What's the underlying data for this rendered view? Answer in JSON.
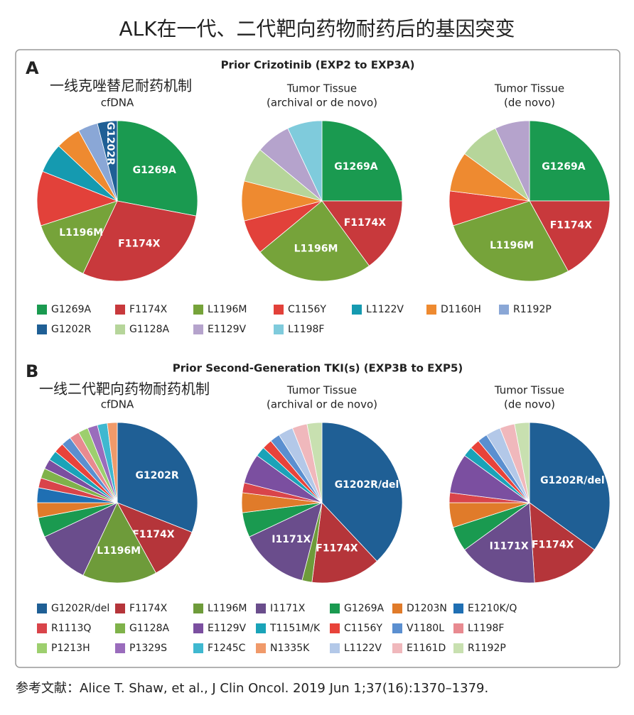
{
  "title": "ALK在一代、二代靶向药物耐药后的基因突变",
  "footer": "参考文献：Alice T. Shaw, et al., J Clin Oncol. 2019 Jun 1;37(16):1370–1379.",
  "panels": [
    {
      "label": "A",
      "title": "Prior Crizotinib (EXP2 to EXP3A)",
      "note": "一线克唑替尼耐药机制",
      "legend": [
        {
          "name": "G1269A",
          "color": "#1a9a50"
        },
        {
          "name": "F1174X",
          "color": "#c8393c"
        },
        {
          "name": "L1196M",
          "color": "#76a33a"
        },
        {
          "name": "C1156Y",
          "color": "#e2413a"
        },
        {
          "name": "L1122V",
          "color": "#159ab0"
        },
        {
          "name": "D1160H",
          "color": "#ee8a30"
        },
        {
          "name": "R1192P",
          "color": "#8aa7d6"
        },
        {
          "name": "G1202R",
          "color": "#1f5f95"
        },
        {
          "name": "G1128A",
          "color": "#b6d59a"
        },
        {
          "name": "E1129V",
          "color": "#b5a3cc"
        },
        {
          "name": "L1198F",
          "color": "#7fcbdc"
        }
      ]
    },
    {
      "label": "B",
      "title": "Prior Second-Generation TKI(s) (EXP3B to EXP5)",
      "note": "一线二代靶向药物耐药机制",
      "legend": [
        {
          "name": "G1202R/del",
          "color": "#1f5f95"
        },
        {
          "name": "F1174X",
          "color": "#b5353a"
        },
        {
          "name": "L1196M",
          "color": "#6e9b3a"
        },
        {
          "name": "I1171X",
          "color": "#6a4d8c"
        },
        {
          "name": "G1269A",
          "color": "#1a9a50"
        },
        {
          "name": "D1203N",
          "color": "#e07b2a"
        },
        {
          "name": "E1210K/Q",
          "color": "#1f6fb3"
        },
        {
          "name": "R1113Q",
          "color": "#d9444a"
        },
        {
          "name": "G1128A",
          "color": "#7fb24a"
        },
        {
          "name": "E1129V",
          "color": "#7b4fa0"
        },
        {
          "name": "T1151M/K",
          "color": "#1aa3b8"
        },
        {
          "name": "C1156Y",
          "color": "#e8433a"
        },
        {
          "name": "V1180L",
          "color": "#5b8fd0"
        },
        {
          "name": "L1198F",
          "color": "#e88a90"
        },
        {
          "name": "P1213H",
          "color": "#9dcf6e"
        },
        {
          "name": "P1329S",
          "color": "#9a6cbc"
        },
        {
          "name": "F1245C",
          "color": "#3fb8d0"
        },
        {
          "name": "N1335K",
          "color": "#f09a6a"
        },
        {
          "name": "L1122V",
          "color": "#b3c8e8"
        },
        {
          "name": "E1161D",
          "color": "#f0b8bc"
        },
        {
          "name": "R1192P",
          "color": "#c8e0b0"
        }
      ]
    }
  ],
  "chart_data": [
    {
      "type": "pie",
      "title": "cfDNA",
      "categories": [
        "G1269A",
        "F1174X",
        "L1196M",
        null,
        null,
        null,
        null,
        "G1202R"
      ],
      "values": [
        28,
        29,
        13,
        11,
        6,
        5,
        4,
        4
      ],
      "colors": [
        "#1a9a50",
        "#c8393c",
        "#76a33a",
        "#e2413a",
        "#159ab0",
        "#ee8a30",
        "#8aa7d6",
        "#1f5f95"
      ]
    },
    {
      "type": "pie",
      "title": "Tumor Tissue",
      "subtitle": "(archival or de novo)",
      "categories": [
        "G1269A",
        "F1174X",
        "L1196M",
        null,
        null,
        null,
        null,
        null
      ],
      "values": [
        25,
        15,
        24,
        7,
        8,
        7,
        7,
        7
      ],
      "colors": [
        "#1a9a50",
        "#c8393c",
        "#76a33a",
        "#e2413a",
        "#ee8a30",
        "#b6d59a",
        "#b5a3cc",
        "#7fcbdc"
      ]
    },
    {
      "type": "pie",
      "title": "Tumor Tissue",
      "subtitle": "(de novo)",
      "categories": [
        "G1269A",
        "F1174X",
        "L1196M",
        null,
        null,
        null,
        null
      ],
      "values": [
        25,
        17,
        28,
        7,
        8,
        8,
        7
      ],
      "colors": [
        "#1a9a50",
        "#c8393c",
        "#76a33a",
        "#e2413a",
        "#ee8a30",
        "#b6d59a",
        "#b5a3cc"
      ]
    },
    {
      "type": "pie",
      "title": "cfDNA",
      "categories": [
        "G1202R",
        "F1174X",
        "L1196M",
        null,
        null,
        null,
        null,
        null,
        null,
        null,
        null,
        null,
        null,
        null,
        null,
        null,
        null,
        null
      ],
      "values": [
        31,
        11,
        15,
        11,
        4,
        3,
        3,
        2,
        2,
        2,
        2,
        2,
        2,
        2,
        2,
        2,
        2,
        2
      ],
      "colors": [
        "#1f5f95",
        "#b5353a",
        "#6e9b3a",
        "#6a4d8c",
        "#1a9a50",
        "#e07b2a",
        "#1f6fb3",
        "#d9444a",
        "#7fb24a",
        "#7b4fa0",
        "#1aa3b8",
        "#e8433a",
        "#5b8fd0",
        "#e88a90",
        "#9dcf6e",
        "#9a6cbc",
        "#3fb8d0",
        "#f09a6a"
      ]
    },
    {
      "type": "pie",
      "title": "Tumor Tissue",
      "subtitle": "(archival or de novo)",
      "categories": [
        "G1202R/del",
        "F1174X",
        null,
        "I1171X",
        null,
        null,
        null,
        null,
        null,
        null,
        null,
        null,
        null,
        null
      ],
      "values": [
        38,
        14,
        2,
        14,
        5,
        4,
        2,
        6,
        2,
        2,
        2,
        3,
        3,
        3
      ],
      "colors": [
        "#1f5f95",
        "#b5353a",
        "#6e9b3a",
        "#6a4d8c",
        "#1a9a50",
        "#e07b2a",
        "#d9444a",
        "#7b4fa0",
        "#1aa3b8",
        "#e8433a",
        "#5b8fd0",
        "#b3c8e8",
        "#f0b8bc",
        "#c8e0b0"
      ]
    },
    {
      "type": "pie",
      "title": "Tumor Tissue",
      "subtitle": "(de novo)",
      "categories": [
        "G1202R/del",
        "F1174X",
        "I1171X",
        null,
        null,
        null,
        null,
        null,
        null,
        null,
        null,
        null,
        null
      ],
      "values": [
        35,
        14,
        16,
        5,
        5,
        2,
        8,
        2,
        2,
        2,
        3,
        3,
        3
      ],
      "colors": [
        "#1f5f95",
        "#b5353a",
        "#6a4d8c",
        "#1a9a50",
        "#e07b2a",
        "#d9444a",
        "#7b4fa0",
        "#1aa3b8",
        "#e8433a",
        "#5b8fd0",
        "#b3c8e8",
        "#f0b8bc",
        "#c8e0b0"
      ]
    }
  ]
}
